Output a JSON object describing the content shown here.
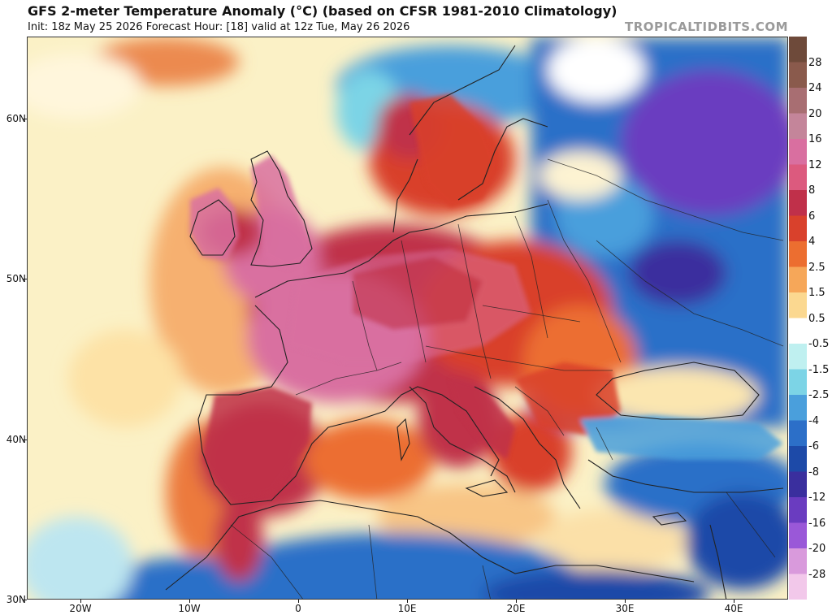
{
  "header": {
    "title": "GFS 2-meter Temperature Anomaly (°C) (based on CFSR 1981-2010 Climatology)",
    "subtitle": "Init: 18z May 25 2026   Forecast Hour: [18]   valid at 12z Tue, May 26 2026",
    "brand": "TROPICALTIDBITS.COM"
  },
  "colorbar": {
    "labels": [
      "28",
      "24",
      "20",
      "16",
      "12",
      "8",
      "6",
      "4",
      "2.5",
      "1.5",
      "0.5",
      "-0.5",
      "-1.5",
      "-2.5",
      "-4",
      "-6",
      "-8",
      "-12",
      "-16",
      "-20",
      "-28"
    ],
    "colors": [
      "#6e4a3a",
      "#8a5a4c",
      "#a86e72",
      "#c4859a",
      "#d96fa0",
      "#dc5a7e",
      "#c0304a",
      "#d9412c",
      "#ec6e30",
      "#f6a759",
      "#fbd890",
      "#ffffff",
      "#bff0f0",
      "#7cd4e6",
      "#4a9fdc",
      "#2c6fc8",
      "#1d4aa8",
      "#3a2f9e",
      "#6a3cc0",
      "#9a58d8",
      "#d99adc",
      "#f2c8ea"
    ]
  },
  "lat_labels": [
    {
      "text": "60N",
      "lat": 60
    },
    {
      "text": "50N",
      "lat": 50
    },
    {
      "text": "40N",
      "lat": 40
    },
    {
      "text": "30N",
      "lat": 30
    }
  ],
  "lon_labels": [
    {
      "text": "20W",
      "lon": -20
    },
    {
      "text": "10W",
      "lon": -10
    },
    {
      "text": "0",
      "lon": 0
    },
    {
      "text": "10E",
      "lon": 10
    },
    {
      "text": "20E",
      "lon": 20
    },
    {
      "text": "30E",
      "lon": 30
    },
    {
      "text": "40E",
      "lon": 40
    }
  ],
  "map": {
    "ocean_color": "#fbf1c6",
    "warm_anomaly_colors": [
      "#f8c585",
      "#ec7a3c",
      "#d9412c",
      "#c0304a",
      "#d96fa0",
      "#e08fc0"
    ],
    "cold_anomaly_colors": [
      "#7cd4e6",
      "#4a9fdc",
      "#2c6fc8",
      "#1d4aa8",
      "#6a3cc0"
    ]
  }
}
